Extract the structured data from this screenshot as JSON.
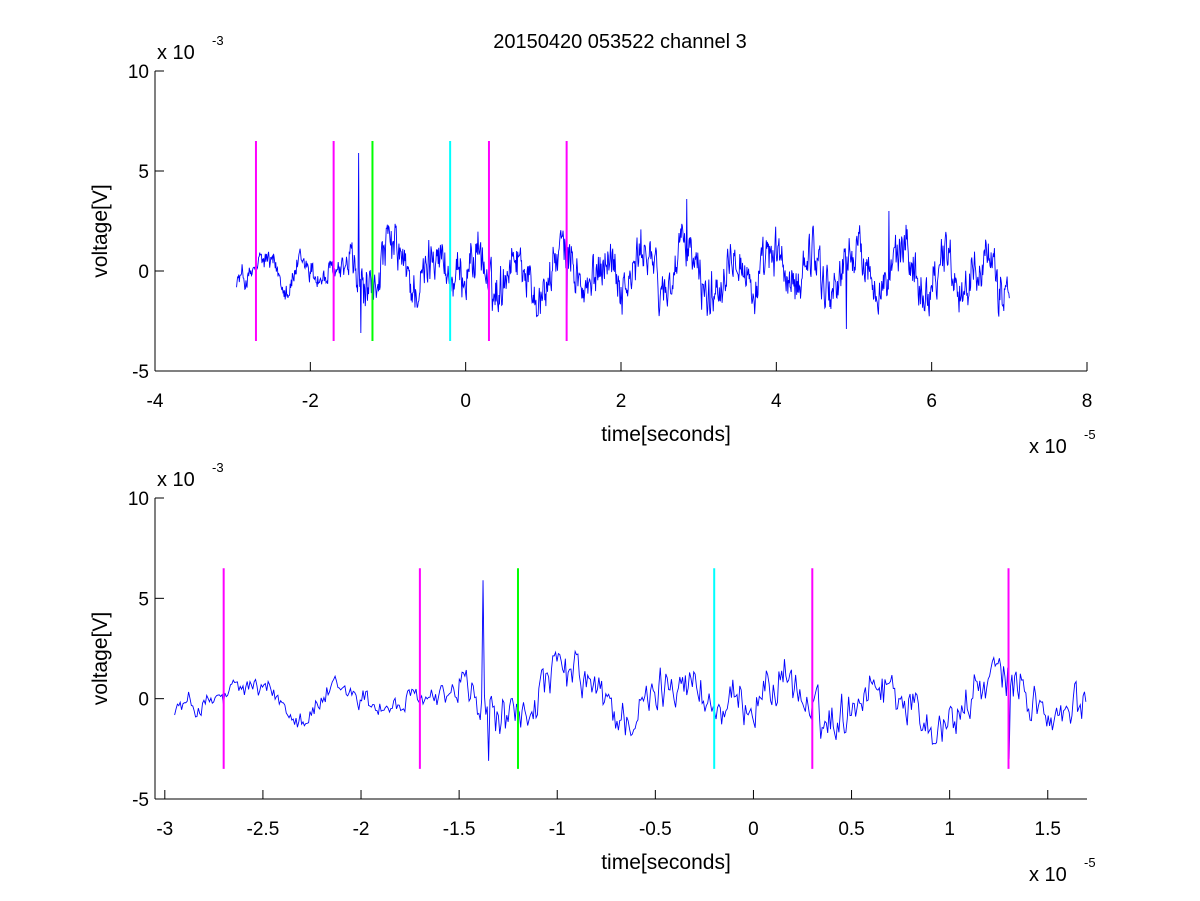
{
  "figure": {
    "title": "20150420 053522 channel 3"
  },
  "chart_data": [
    {
      "type": "line",
      "title": "20150420 053522 channel 3",
      "xlabel": "time[seconds]",
      "ylabel": "voltage[V]",
      "x_multiplier_base": "x 10",
      "x_multiplier_exp": "-5",
      "y_multiplier_base": "x 10",
      "y_multiplier_exp": "-3",
      "xlim": [
        -4,
        8
      ],
      "ylim": [
        -5,
        10
      ],
      "xticks": [
        -4,
        -2,
        0,
        2,
        4,
        6,
        8
      ],
      "xtick_labels": [
        "-4",
        "-2",
        "0",
        "2",
        "4",
        "6",
        "8"
      ],
      "yticks": [
        -5,
        0,
        5,
        10
      ],
      "ytick_labels": [
        "-5",
        "0",
        "5",
        "10"
      ],
      "grid": false,
      "series": [
        {
          "color": "#0000ff",
          "x_range": [
            -2.95,
            7.0
          ],
          "y_range": [
            -3.3,
            5.9
          ],
          "y_typical_range": [
            -2.0,
            2.0
          ]
        }
      ],
      "markers": [
        {
          "x": -2.7,
          "y_range": [
            -3.5,
            6.5
          ],
          "color": "#ff00ff"
        },
        {
          "x": -1.7,
          "y_range": [
            -3.5,
            6.5
          ],
          "color": "#ff00ff"
        },
        {
          "x": -1.2,
          "y_range": [
            -3.5,
            6.5
          ],
          "color": "#00ff00"
        },
        {
          "x": -0.2,
          "y_range": [
            -3.5,
            6.5
          ],
          "color": "#00ffff"
        },
        {
          "x": 0.3,
          "y_range": [
            -3.5,
            6.5
          ],
          "color": "#ff00ff"
        },
        {
          "x": 1.3,
          "y_range": [
            -3.5,
            6.5
          ],
          "color": "#ff00ff"
        }
      ]
    },
    {
      "type": "line",
      "xlabel": "time[seconds]",
      "ylabel": "voltage[V]",
      "x_multiplier_base": "x 10",
      "x_multiplier_exp": "-5",
      "y_multiplier_base": "x 10",
      "y_multiplier_exp": "-3",
      "xlim": [
        -3.05,
        1.7
      ],
      "ylim": [
        -5,
        10
      ],
      "xticks": [
        -3,
        -2.5,
        -2,
        -1.5,
        -1,
        -0.5,
        0,
        0.5,
        1,
        1.5
      ],
      "xtick_labels": [
        "-3",
        "-2.5",
        "-2",
        "-1.5",
        "-1",
        "-0.5",
        "0",
        "0.5",
        "1",
        "1.5"
      ],
      "yticks": [
        -5,
        0,
        5,
        10
      ],
      "ytick_labels": [
        "-5",
        "0",
        "5",
        "10"
      ],
      "grid": false,
      "series": [
        {
          "color": "#0000ff",
          "x_range": [
            -2.95,
            1.7
          ],
          "y_range": [
            -3.2,
            5.9
          ],
          "y_typical_range": [
            -2.0,
            2.0
          ]
        }
      ],
      "markers": [
        {
          "x": -2.7,
          "y_range": [
            -3.5,
            6.5
          ],
          "color": "#ff00ff"
        },
        {
          "x": -1.7,
          "y_range": [
            -3.5,
            6.5
          ],
          "color": "#ff00ff"
        },
        {
          "x": -1.2,
          "y_range": [
            -3.5,
            6.5
          ],
          "color": "#00ff00"
        },
        {
          "x": -0.2,
          "y_range": [
            -3.5,
            6.5
          ],
          "color": "#00ffff"
        },
        {
          "x": 0.3,
          "y_range": [
            -3.5,
            6.5
          ],
          "color": "#ff00ff"
        },
        {
          "x": 1.3,
          "y_range": [
            -3.5,
            6.5
          ],
          "color": "#ff00ff"
        }
      ]
    }
  ]
}
